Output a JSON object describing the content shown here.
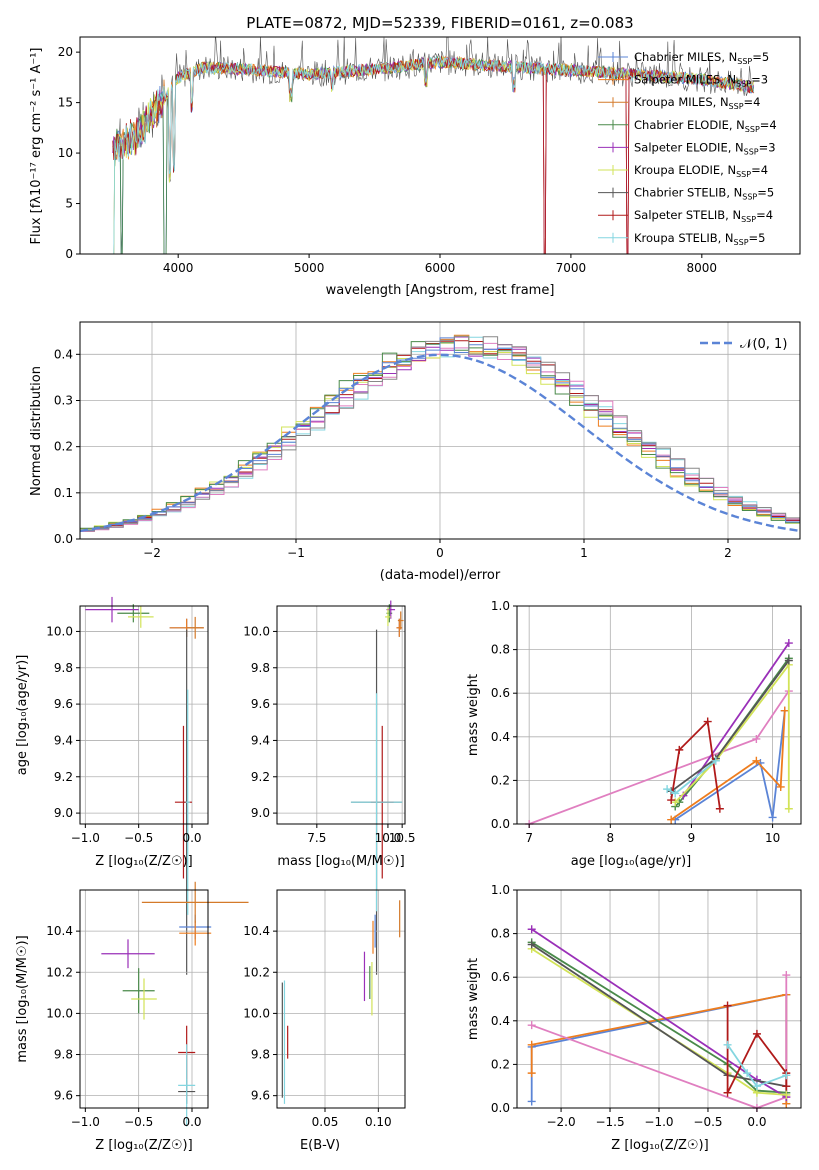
{
  "figure": {
    "title": "PLATE=0872, MJD=52339, FIBERID=0161, z=0.083"
  },
  "models": [
    {
      "name": "Chabrier MILES",
      "nssp": "5",
      "color": "#5b84d6"
    },
    {
      "name": "Salpeter MILES",
      "nssp": "3",
      "color": "#ee7d1e"
    },
    {
      "name": "Kroupa MILES",
      "nssp": "4",
      "color": "#d47a2a"
    },
    {
      "name": "Chabrier ELODIE",
      "nssp": "4",
      "color": "#4a8a4a"
    },
    {
      "name": "Salpeter ELODIE",
      "nssp": "3",
      "color": "#9a30b8"
    },
    {
      "name": "Kroupa ELODIE",
      "nssp": "4",
      "color": "#d2e358"
    },
    {
      "name": "Chabrier STELIB",
      "nssp": "5",
      "color": "#555555"
    },
    {
      "name": "Salpeter STELIB",
      "nssp": "4",
      "color": "#b01a1a"
    },
    {
      "name": "Kroupa STELIB",
      "nssp": "5",
      "color": "#84d6e0"
    }
  ],
  "chart_data": [
    {
      "id": "spectrum",
      "type": "line",
      "xlabel": "wavelength [Angstrom, rest frame]",
      "ylabel": "Flux [fλ10⁻¹⁷ erg cm⁻² s⁻¹ A⁻¹]",
      "xlim": [
        3250,
        8750
      ],
      "ylim": [
        0,
        21.5
      ],
      "xticks": [
        4000,
        5000,
        6000,
        7000,
        8000
      ],
      "yticks": [
        0,
        5,
        10,
        15,
        20
      ],
      "legend_position": "top-right",
      "legend_label_suffix": ", N",
      "legend_label_subscript": "SSP",
      "continuum": {
        "x": [
          3500,
          3600,
          3700,
          3800,
          3900,
          4000,
          4200,
          4500,
          5000,
          5500,
          6000,
          6500,
          7000,
          7500,
          8000,
          8400
        ],
        "y": [
          10.5,
          11,
          12,
          14,
          15.5,
          17.5,
          18.5,
          18.3,
          17.8,
          18.3,
          19,
          18.6,
          18.2,
          17.8,
          17.3,
          16.5
        ]
      },
      "dips": [
        {
          "x": 3934,
          "y": 7
        },
        {
          "x": 3969,
          "y": 8
        },
        {
          "x": 4102,
          "y": 14
        },
        {
          "x": 4861,
          "y": 15
        },
        {
          "x": 5175,
          "y": 16
        },
        {
          "x": 5893,
          "y": 16.5
        },
        {
          "x": 6563,
          "y": 16
        },
        {
          "x": 3900,
          "y": 0
        },
        {
          "x": 6800,
          "y": 0
        },
        {
          "x": 7430,
          "y": 0
        },
        {
          "x": 3570,
          "y": 0
        },
        {
          "x": 3505,
          "y": 0
        }
      ]
    },
    {
      "id": "residuals",
      "type": "histogram",
      "xlabel": "(data-model)/error",
      "ylabel": "Normed distribution",
      "xlim": [
        -2.5,
        2.5
      ],
      "ylim": [
        0,
        0.47
      ],
      "xticks": [
        -2,
        -1,
        0,
        1,
        2
      ],
      "yticks": [
        0,
        0.1,
        0.2,
        0.3,
        0.4
      ],
      "grid": true,
      "bin_width": 0.1,
      "reference_curve": {
        "label": "𝒩(0, 1)",
        "mean": 0,
        "sigma": 1,
        "color": "#5b84d6",
        "style": "dashed"
      },
      "legend_position": "top-right"
    },
    {
      "id": "age_vs_Z",
      "type": "errorbar",
      "xlabel": "Z [log₁₀(Z/Z☉)]",
      "ylabel": "age  [log₁₀(age/yr)]",
      "xlim": [
        -1.05,
        0.15
      ],
      "ylim": [
        8.94,
        10.14
      ],
      "xticks": [
        -1.0,
        -0.5,
        0.0
      ],
      "yticks": [
        9.0,
        9.2,
        9.4,
        9.6,
        9.8,
        10.0
      ],
      "grid": true,
      "points": [
        {
          "model": 0,
          "x": -0.05,
          "y": 10.02,
          "xerr": 0.16,
          "yerr": 0.05
        },
        {
          "model": 1,
          "x": -0.05,
          "y": 10.02,
          "xerr": 0.16,
          "yerr": 0.05
        },
        {
          "model": 2,
          "x": 0.03,
          "y": 10.02,
          "xerr": 0.08,
          "yerr": 0.06
        },
        {
          "model": 3,
          "x": -0.55,
          "y": 10.1,
          "xerr": 0.15,
          "yerr": 0.05
        },
        {
          "model": 4,
          "x": -0.75,
          "y": 10.12,
          "xerr": 0.25,
          "yerr": 0.07
        },
        {
          "model": 5,
          "x": -0.48,
          "y": 10.08,
          "xerr": 0.12,
          "yerr": 0.06
        },
        {
          "model": 6,
          "x": -0.05,
          "y": 9.06,
          "xerr": 0.02,
          "yerr": 0.95
        },
        {
          "model": 7,
          "x": -0.08,
          "y": 9.06,
          "xerr": 0.08,
          "yerr": 0.42
        },
        {
          "model": 8,
          "x": -0.04,
          "y": 9.06,
          "xerr": 0.02,
          "yerr": 0.62
        }
      ]
    },
    {
      "id": "age_vs_mass",
      "type": "errorbar",
      "xlabel": "mass [log₁₀(M/M☉)]",
      "ylabel": "",
      "xlim": [
        6.1,
        10.6
      ],
      "ylim": [
        8.94,
        10.14
      ],
      "xticks": [
        7.5,
        10.0,
        10.5
      ],
      "xticklabels": [
        "7.5",
        "10.0",
        "10.5"
      ],
      "yticks": [
        9.0,
        9.2,
        9.4,
        9.6,
        9.8,
        10.0
      ],
      "grid": true,
      "points": [
        {
          "model": 0,
          "x": 10.4,
          "y": 10.02,
          "xerr": 0.1,
          "yerr": 0.05
        },
        {
          "model": 1,
          "x": 10.4,
          "y": 10.02,
          "xerr": 0.1,
          "yerr": 0.05
        },
        {
          "model": 2,
          "x": 10.45,
          "y": 10.06,
          "xerr": 0.1,
          "yerr": 0.05
        },
        {
          "model": 3,
          "x": 10.05,
          "y": 10.1,
          "xerr": 0.1,
          "yerr": 0.05
        },
        {
          "model": 4,
          "x": 10.1,
          "y": 10.12,
          "xerr": 0.15,
          "yerr": 0.05
        },
        {
          "model": 5,
          "x": 10.0,
          "y": 10.08,
          "xerr": 0.1,
          "yerr": 0.05
        },
        {
          "model": 6,
          "x": 9.6,
          "y": 9.06,
          "xerr": 0.9,
          "yerr": 0.95
        },
        {
          "model": 7,
          "x": 9.8,
          "y": 9.06,
          "xerr": 0.4,
          "yerr": 0.42
        },
        {
          "model": 8,
          "x": 9.6,
          "y": 9.06,
          "xerr": 0.9,
          "yerr": 0.6
        }
      ]
    },
    {
      "id": "weight_vs_age",
      "type": "line",
      "xlabel": "age  [log₁₀(age/yr)]",
      "ylabel": "mass weight",
      "xlim": [
        6.85,
        10.35
      ],
      "ylim": [
        0,
        1
      ],
      "xticks": [
        7,
        8,
        9,
        10
      ],
      "yticks": [
        0,
        0.2,
        0.4,
        0.6,
        0.8,
        1.0
      ],
      "grid": true,
      "series": [
        {
          "model": 0,
          "x": [
            8.8,
            9.85,
            10.0,
            10.15
          ],
          "y": [
            0.02,
            0.28,
            0.03,
            0.52
          ]
        },
        {
          "model": 1,
          "x": [
            8.75,
            9.8,
            10.1,
            10.15
          ],
          "y": [
            0.02,
            0.29,
            0.17,
            0.52
          ]
        },
        {
          "model": 2,
          "x": [
            7.0,
            9.8,
            10.2
          ],
          "y": [
            0.0,
            0.39,
            0.61
          ]
        },
        {
          "model": 3,
          "x": [
            8.8,
            8.85,
            9.3,
            10.2
          ],
          "y": [
            0.08,
            0.1,
            0.3,
            0.76
          ]
        },
        {
          "model": 4,
          "x": [
            8.9,
            10.2
          ],
          "y": [
            0.13,
            0.83
          ]
        },
        {
          "model": 5,
          "x": [
            8.8,
            9.3,
            10.2,
            10.2
          ],
          "y": [
            0.1,
            0.29,
            0.73,
            0.07
          ]
        },
        {
          "model": 6,
          "x": [
            8.75,
            9.3,
            10.2
          ],
          "y": [
            0.15,
            0.3,
            0.75
          ]
        },
        {
          "model": 7,
          "x": [
            8.75,
            8.85,
            9.2,
            9.35
          ],
          "y": [
            0.11,
            0.34,
            0.47,
            0.07
          ]
        },
        {
          "model": 8,
          "x": [
            8.7,
            8.8,
            9.3
          ],
          "y": [
            0.16,
            0.14,
            0.29
          ]
        }
      ]
    },
    {
      "id": "mass_vs_Z",
      "type": "errorbar",
      "xlabel": "Z [log₁₀(Z/Z☉)]",
      "ylabel": "mass [log₁₀(M/M☉)]",
      "xlim": [
        -1.05,
        0.15
      ],
      "ylim": [
        9.54,
        10.6
      ],
      "xticks": [
        -1.0,
        -0.5,
        0.0
      ],
      "yticks": [
        9.6,
        9.8,
        10.0,
        10.2,
        10.4
      ],
      "grid": true,
      "points": [
        {
          "model": 0,
          "x": 0.03,
          "y": 10.42,
          "xerr": 0.15,
          "yerr": 0.06
        },
        {
          "model": 1,
          "x": 0.03,
          "y": 10.39,
          "xerr": 0.15,
          "yerr": 0.06
        },
        {
          "model": 2,
          "x": 0.03,
          "y": 10.54,
          "xerr": 0.5,
          "yerr": 0.1
        },
        {
          "model": 3,
          "x": -0.5,
          "y": 10.11,
          "xerr": 0.15,
          "yerr": 0.11
        },
        {
          "model": 4,
          "x": -0.6,
          "y": 10.29,
          "xerr": 0.25,
          "yerr": 0.07
        },
        {
          "model": 5,
          "x": -0.45,
          "y": 10.07,
          "xerr": 0.12,
          "yerr": 0.1
        },
        {
          "model": 6,
          "x": -0.05,
          "y": 9.62,
          "xerr": 0.08,
          "yerr": 0.06
        },
        {
          "model": 7,
          "x": -0.05,
          "y": 9.81,
          "xerr": 0.08,
          "yerr": 0.13
        },
        {
          "model": 8,
          "x": -0.05,
          "y": 9.65,
          "xerr": 0.08,
          "yerr": 0.2
        }
      ]
    },
    {
      "id": "mass_vs_EBV",
      "type": "errorbar",
      "xlabel": "E(B-V)",
      "ylabel": "",
      "xlim": [
        0.005,
        0.125
      ],
      "ylim": [
        9.54,
        10.6
      ],
      "xticks": [
        0.05,
        0.1
      ],
      "xticklabels": [
        "0.05",
        "0.10"
      ],
      "yticks": [
        9.6,
        9.8,
        10.0,
        10.2,
        10.4
      ],
      "grid": true,
      "points": [
        {
          "model": 0,
          "x": 0.097,
          "y": 10.4,
          "xerr": 0.0,
          "yerr": 0.08
        },
        {
          "model": 1,
          "x": 0.095,
          "y": 10.37,
          "xerr": 0.0,
          "yerr": 0.08
        },
        {
          "model": 2,
          "x": 0.12,
          "y": 10.46,
          "xerr": 0.0,
          "yerr": 0.09
        },
        {
          "model": 3,
          "x": 0.092,
          "y": 10.15,
          "xerr": 0.0,
          "yerr": 0.08
        },
        {
          "model": 4,
          "x": 0.087,
          "y": 10.18,
          "xerr": 0.0,
          "yerr": 0.12
        },
        {
          "model": 5,
          "x": 0.094,
          "y": 10.12,
          "xerr": 0.0,
          "yerr": 0.13
        },
        {
          "model": 6,
          "x": 0.01,
          "y": 9.87,
          "xerr": 0.0,
          "yerr": 0.28
        },
        {
          "model": 7,
          "x": 0.015,
          "y": 9.86,
          "xerr": 0.0,
          "yerr": 0.08
        },
        {
          "model": 8,
          "x": 0.012,
          "y": 9.86,
          "xerr": 0.0,
          "yerr": 0.3
        }
      ]
    },
    {
      "id": "weight_vs_Z",
      "type": "line",
      "xlabel": "Z [log₁₀(Z/Z☉)]",
      "ylabel": "mass weight",
      "xlim": [
        -2.45,
        0.45
      ],
      "ylim": [
        0,
        1
      ],
      "xticks": [
        -2.0,
        -1.5,
        -1.0,
        -0.5,
        0.0
      ],
      "yticks": [
        0,
        0.2,
        0.4,
        0.6,
        0.8,
        1.0
      ],
      "grid": true,
      "series": [
        {
          "model": 0,
          "x": [
            -2.3,
            -2.3,
            0.3,
            0.3
          ],
          "y": [
            0.03,
            0.28,
            0.52,
            0.02
          ]
        },
        {
          "model": 1,
          "x": [
            -2.3,
            -2.3,
            0.3,
            0.3
          ],
          "y": [
            0.16,
            0.29,
            0.52,
            0.02
          ]
        },
        {
          "model": 2,
          "x": [
            -2.3,
            0.0,
            0.3,
            0.3
          ],
          "y": [
            0.38,
            0.0,
            0.05,
            0.61
          ]
        },
        {
          "model": 3,
          "x": [
            -2.3,
            -0.3,
            0.0,
            0.3
          ],
          "y": [
            0.76,
            0.2,
            0.08,
            0.07
          ]
        },
        {
          "model": 4,
          "x": [
            -2.3,
            0.0,
            0.3
          ],
          "y": [
            0.82,
            0.13,
            0.05
          ]
        },
        {
          "model": 5,
          "x": [
            -2.3,
            -0.3,
            0.0,
            0.3
          ],
          "y": [
            0.73,
            0.16,
            0.07,
            0.06
          ]
        },
        {
          "model": 6,
          "x": [
            -2.3,
            -0.3,
            0.3
          ],
          "y": [
            0.75,
            0.15,
            0.1
          ]
        },
        {
          "model": 7,
          "x": [
            -0.3,
            -0.3,
            0.0,
            0.3,
            0.3
          ],
          "y": [
            0.47,
            0.07,
            0.34,
            0.16,
            0.1
          ]
        },
        {
          "model": 8,
          "x": [
            -0.3,
            -0.1,
            0.0,
            0.3
          ],
          "y": [
            0.29,
            0.16,
            0.1,
            0.15
          ]
        }
      ]
    }
  ]
}
